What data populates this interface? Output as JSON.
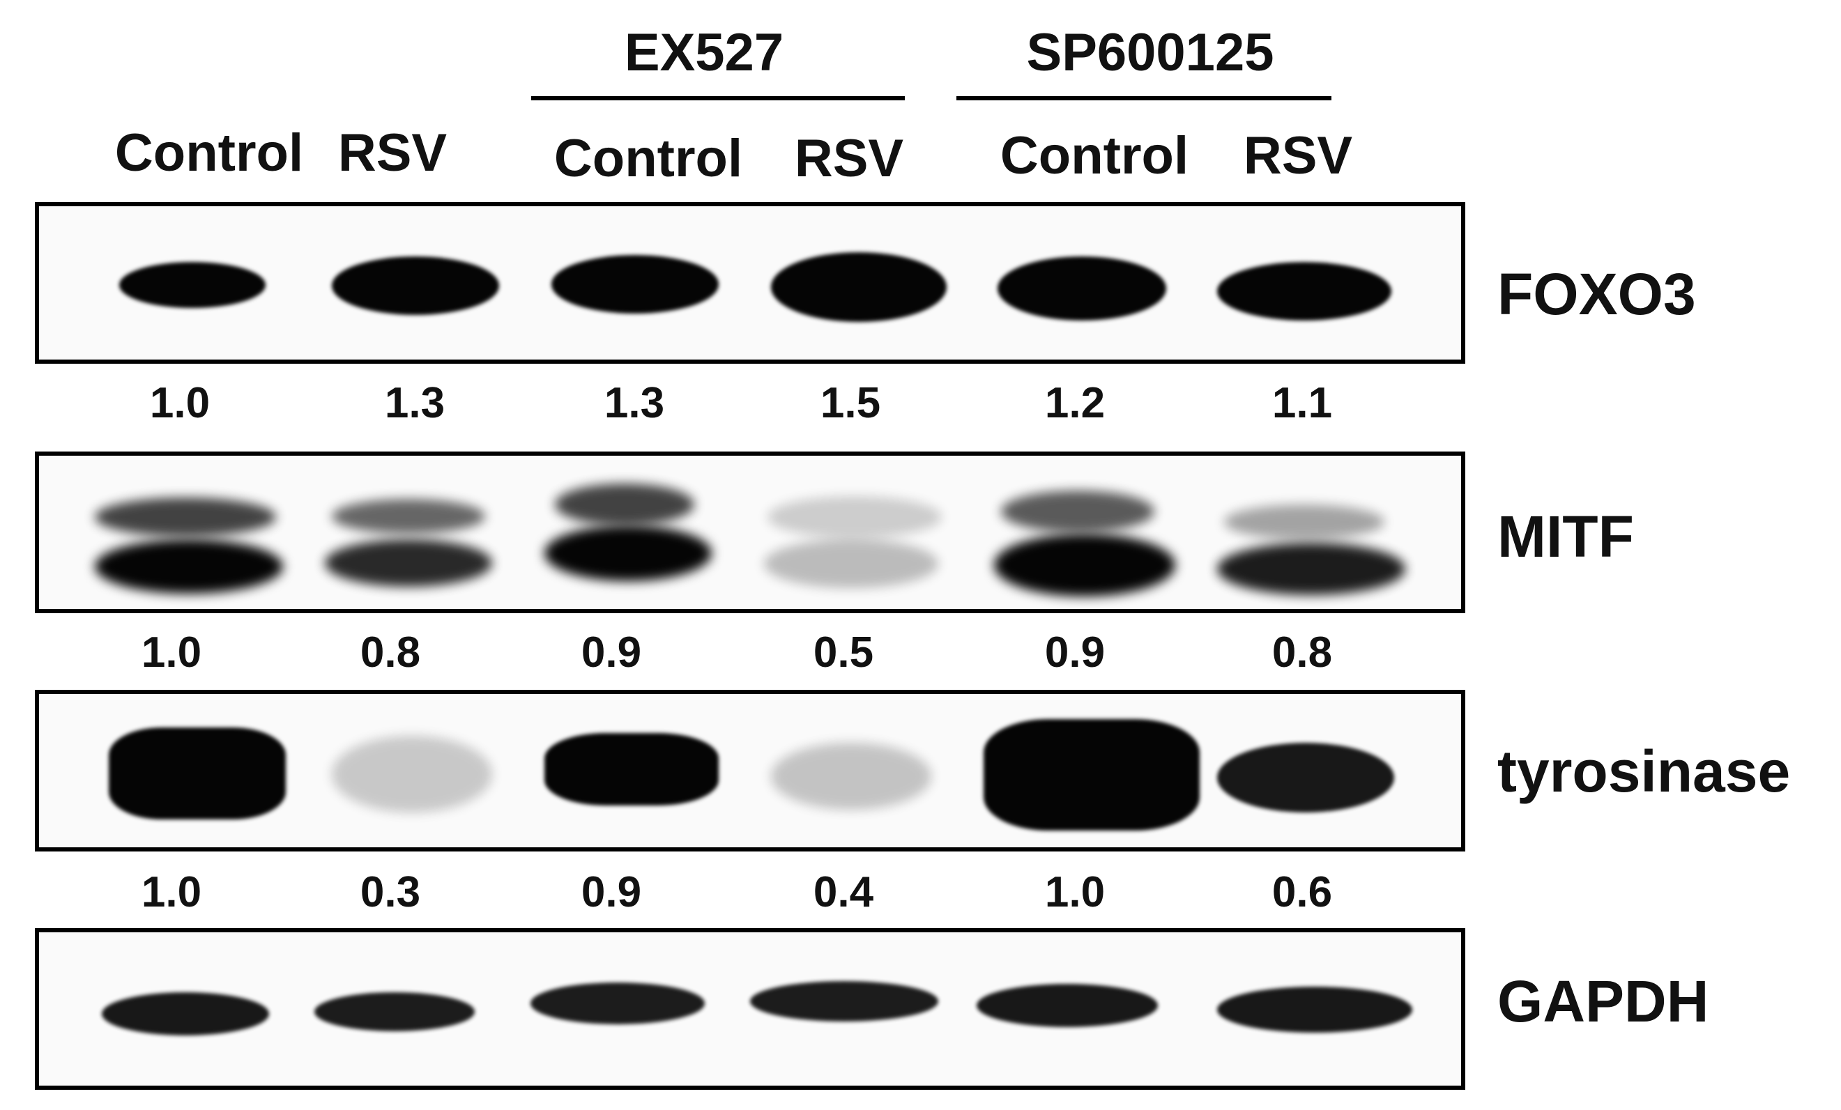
{
  "groups": [
    {
      "label": "EX527"
    },
    {
      "label": "SP600125"
    }
  ],
  "lanes": [
    "Control",
    "RSV",
    "Control",
    "RSV",
    "Control",
    "RSV"
  ],
  "blots": [
    {
      "protein": "FOXO3",
      "values": [
        "1.0",
        "1.3",
        "1.3",
        "1.5",
        "1.2",
        "1.1"
      ]
    },
    {
      "protein": "MITF",
      "values": [
        "1.0",
        "0.8",
        "0.9",
        "0.5",
        "0.9",
        "0.8"
      ]
    },
    {
      "protein": "tyrosinase",
      "values": [
        "1.0",
        "0.3",
        "0.9",
        "0.4",
        "1.0",
        "0.6"
      ]
    },
    {
      "protein": "GAPDH",
      "values": []
    }
  ],
  "colors": {
    "band": "#050505",
    "background": "#ffffff",
    "panel": "#fafafa"
  }
}
